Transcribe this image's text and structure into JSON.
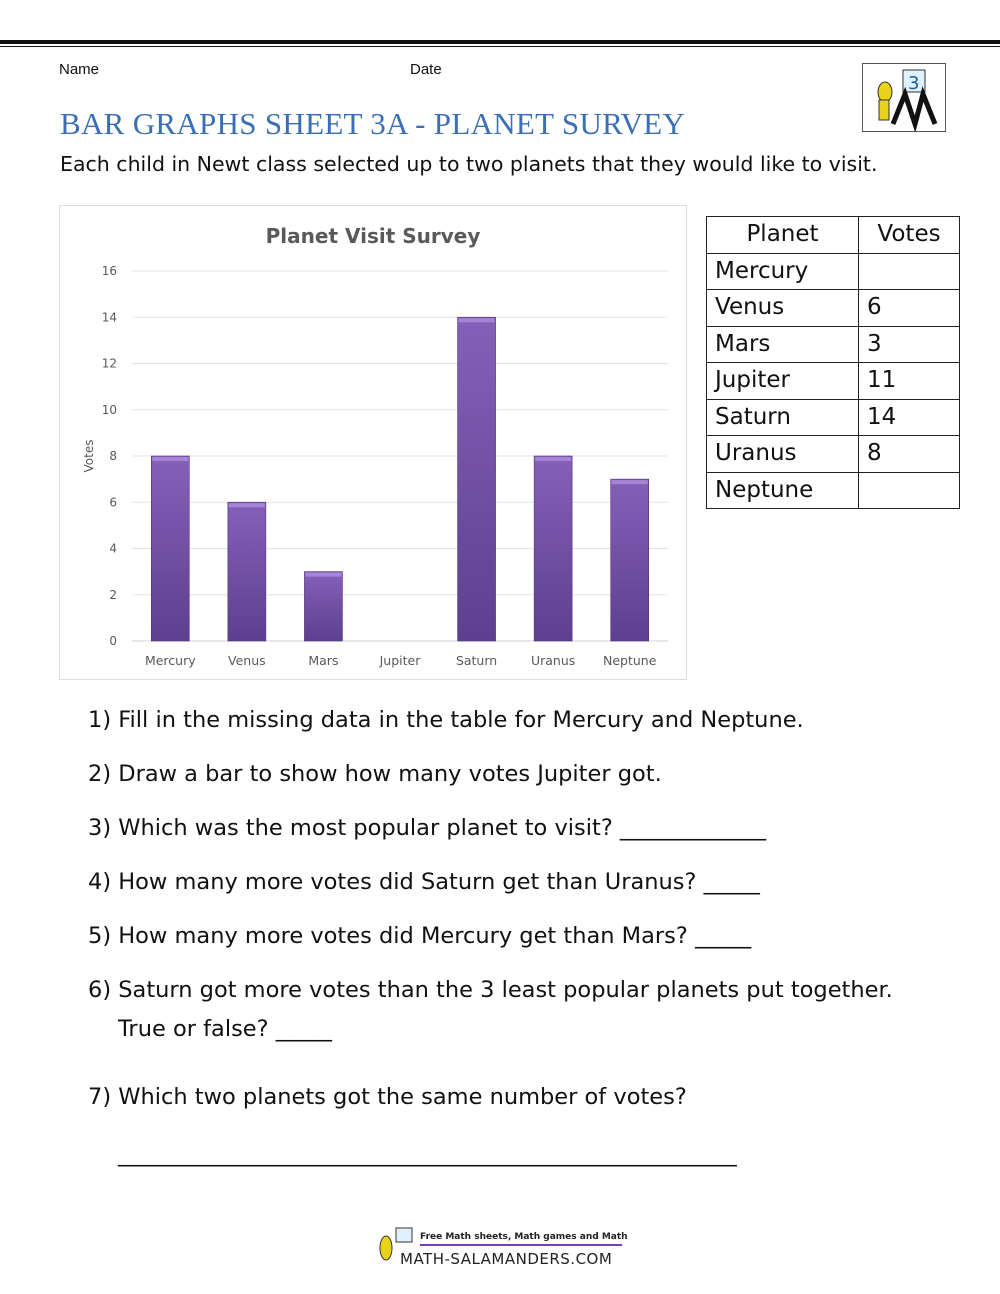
{
  "header": {
    "name_label": "Name",
    "date_label": "Date",
    "grade_badge": "3"
  },
  "title": "BAR GRAPHS SHEET 3A - PLANET SURVEY",
  "intro": "Each child in Newt class selected up to two planets that they would like to visit.",
  "colors": {
    "title": "#3b6fb5",
    "bar": "#7a55aa"
  },
  "chart_data": {
    "type": "bar",
    "title": "Planet Visit Survey",
    "xlabel": "",
    "ylabel": "Votes",
    "categories": [
      "Mercury",
      "Venus",
      "Mars",
      "Jupiter",
      "Saturn",
      "Uranus",
      "Neptune"
    ],
    "values": [
      8,
      6,
      3,
      null,
      14,
      8,
      7
    ],
    "ylim": [
      0,
      16
    ],
    "yticks": [
      "0",
      "2",
      "4",
      "6",
      "8",
      "10",
      "12",
      "14",
      "16"
    ],
    "grid": true
  },
  "table": {
    "headers": [
      "Planet",
      "Votes"
    ],
    "rows": [
      [
        "Mercury",
        ""
      ],
      [
        "Venus",
        "6"
      ],
      [
        "Mars",
        "3"
      ],
      [
        "Jupiter",
        "11"
      ],
      [
        "Saturn",
        "14"
      ],
      [
        "Uranus",
        "8"
      ],
      [
        "Neptune",
        ""
      ]
    ]
  },
  "questions": [
    "1) Fill in the missing data in the table for Mercury and Neptune.",
    "2) Draw a bar to show how many votes Jupiter got.",
    "3) Which was the most popular planet to visit? _____________",
    "4) How many more votes did Saturn get than Uranus? _____",
    "5) How many more votes did Mercury get than Mars? _____",
    "6) Saturn got more votes than the 3 least popular planets put together.",
    "True or false? _____",
    "7) Which two planets got the same number of votes?",
    "_______________________________________________________"
  ],
  "footer": {
    "tagline": "Free Math sheets, Math games and Math help",
    "site": "MATH-SALAMANDERS.COM"
  }
}
